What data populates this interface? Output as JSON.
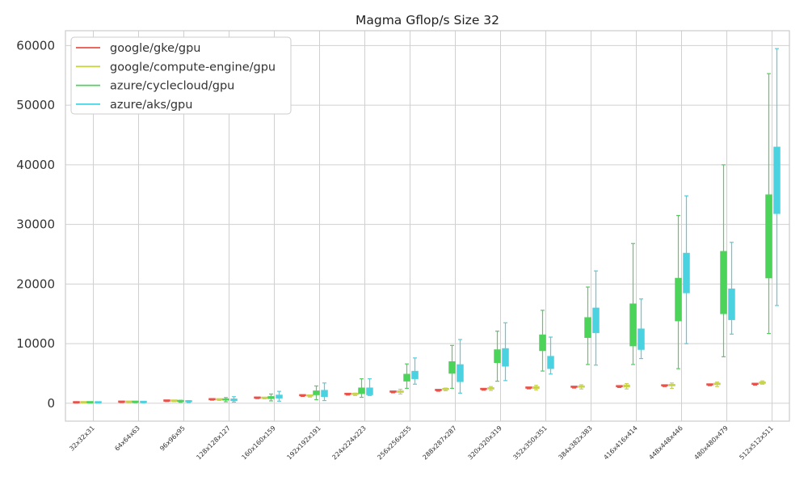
{
  "chart_data": {
    "type": "box",
    "title": "Magma Gflop/s Size 32",
    "xlabel": "",
    "ylabel": "",
    "ylim": [
      -3000,
      62500
    ],
    "yticks": [
      0,
      10000,
      20000,
      30000,
      40000,
      50000,
      60000
    ],
    "ytick_labels": [
      "0",
      "10000",
      "20000",
      "30000",
      "40000",
      "50000",
      "60000"
    ],
    "grid": true,
    "legend_position": "top-left",
    "categories": [
      "32x32x31",
      "64x64x63",
      "96x96x95",
      "128x128x127",
      "160x160x159",
      "192x192x191",
      "224x224x223",
      "256x256x255",
      "288x287x287",
      "320x320x319",
      "352x350x351",
      "384x382x383",
      "416x416x414",
      "448x448x446",
      "480x480x479",
      "512x512x511"
    ],
    "series": [
      {
        "name": "google/gke/gpu",
        "color": "#e8524a",
        "boxes": [
          {
            "whislo": 40,
            "q1": 50,
            "med": 55,
            "q3": 65,
            "whishi": 80
          },
          {
            "whislo": 120,
            "q1": 140,
            "med": 150,
            "q3": 165,
            "whishi": 185
          },
          {
            "whislo": 300,
            "q1": 330,
            "med": 345,
            "q3": 360,
            "whishi": 390
          },
          {
            "whislo": 520,
            "q1": 560,
            "med": 580,
            "q3": 600,
            "whishi": 640
          },
          {
            "whislo": 780,
            "q1": 820,
            "med": 845,
            "q3": 870,
            "whishi": 910
          },
          {
            "whislo": 1150,
            "q1": 1220,
            "med": 1250,
            "q3": 1280,
            "whishi": 1330
          },
          {
            "whislo": 1380,
            "q1": 1450,
            "med": 1480,
            "q3": 1510,
            "whishi": 1560
          },
          {
            "whislo": 1750,
            "q1": 1830,
            "med": 1860,
            "q3": 1890,
            "whishi": 1950
          },
          {
            "whislo": 2020,
            "q1": 2100,
            "med": 2130,
            "q3": 2160,
            "whishi": 2220
          },
          {
            "whislo": 2200,
            "q1": 2280,
            "med": 2310,
            "q3": 2350,
            "whishi": 2420
          },
          {
            "whislo": 2420,
            "q1": 2500,
            "med": 2540,
            "q3": 2580,
            "whishi": 2650
          },
          {
            "whislo": 2550,
            "q1": 2640,
            "med": 2680,
            "q3": 2720,
            "whishi": 2800
          },
          {
            "whislo": 2650,
            "q1": 2740,
            "med": 2780,
            "q3": 2820,
            "whishi": 2900
          },
          {
            "whislo": 2800,
            "q1": 2880,
            "med": 2920,
            "q3": 2960,
            "whishi": 3040
          },
          {
            "whislo": 2950,
            "q1": 3030,
            "med": 3070,
            "q3": 3110,
            "whishi": 3190
          },
          {
            "whislo": 3050,
            "q1": 3130,
            "med": 3170,
            "q3": 3210,
            "whishi": 3290
          }
        ]
      },
      {
        "name": "google/compute-engine/gpu",
        "color": "#c8d24a",
        "boxes": [
          {
            "whislo": 40,
            "q1": 55,
            "med": 60,
            "q3": 70,
            "whishi": 85
          },
          {
            "whislo": 120,
            "q1": 140,
            "med": 150,
            "q3": 170,
            "whishi": 190
          },
          {
            "whislo": 280,
            "q1": 320,
            "med": 340,
            "q3": 360,
            "whishi": 400
          },
          {
            "whislo": 480,
            "q1": 540,
            "med": 570,
            "q3": 610,
            "whishi": 660
          },
          {
            "whislo": 740,
            "q1": 800,
            "med": 840,
            "q3": 880,
            "whishi": 940
          },
          {
            "whislo": 1040,
            "q1": 1160,
            "med": 1200,
            "q3": 1260,
            "whishi": 1350
          },
          {
            "whislo": 1300,
            "q1": 1430,
            "med": 1500,
            "q3": 1580,
            "whishi": 1700
          },
          {
            "whislo": 1550,
            "q1": 1800,
            "med": 1950,
            "q3": 2100,
            "whishi": 2350
          },
          {
            "whislo": 2100,
            "q1": 2250,
            "med": 2350,
            "q3": 2450,
            "whishi": 2550
          },
          {
            "whislo": 2150,
            "q1": 2350,
            "med": 2500,
            "q3": 2650,
            "whishi": 2800
          },
          {
            "whislo": 2250,
            "q1": 2450,
            "med": 2600,
            "q3": 2800,
            "whishi": 3000
          },
          {
            "whislo": 2400,
            "q1": 2650,
            "med": 2800,
            "q3": 2950,
            "whishi": 3100
          },
          {
            "whislo": 2400,
            "q1": 2700,
            "med": 2900,
            "q3": 3100,
            "whishi": 3300
          },
          {
            "whislo": 2500,
            "q1": 2900,
            "med": 3050,
            "q3": 3200,
            "whishi": 3400
          },
          {
            "whislo": 2800,
            "q1": 3100,
            "med": 3250,
            "q3": 3400,
            "whishi": 3550
          },
          {
            "whislo": 3200,
            "q1": 3300,
            "med": 3400,
            "q3": 3600,
            "whishi": 3750
          }
        ]
      },
      {
        "name": "azure/cyclecloud/gpu",
        "color": "#4cd45a",
        "boxes": [
          {
            "whislo": 40,
            "q1": 55,
            "med": 60,
            "q3": 70,
            "whishi": 90
          },
          {
            "whislo": 100,
            "q1": 130,
            "med": 150,
            "q3": 180,
            "whishi": 220
          },
          {
            "whislo": 150,
            "q1": 250,
            "med": 300,
            "q3": 400,
            "whishi": 500
          },
          {
            "whislo": 250,
            "q1": 500,
            "med": 600,
            "q3": 750,
            "whishi": 950
          },
          {
            "whislo": 400,
            "q1": 750,
            "med": 950,
            "q3": 1150,
            "whishi": 1550
          },
          {
            "whislo": 600,
            "q1": 1400,
            "med": 1700,
            "q3": 2100,
            "whishi": 2900
          },
          {
            "whislo": 1000,
            "q1": 1600,
            "med": 2000,
            "q3": 2600,
            "whishi": 4100
          },
          {
            "whislo": 2500,
            "q1": 3700,
            "med": 4200,
            "q3": 4900,
            "whishi": 6600
          },
          {
            "whislo": 2500,
            "q1": 5000,
            "med": 6000,
            "q3": 7000,
            "whishi": 9700
          },
          {
            "whislo": 3700,
            "q1": 6800,
            "med": 7800,
            "q3": 9000,
            "whishi": 12100
          },
          {
            "whislo": 5400,
            "q1": 8800,
            "med": 10000,
            "q3": 11500,
            "whishi": 15600
          },
          {
            "whislo": 6500,
            "q1": 11000,
            "med": 12500,
            "q3": 14400,
            "whishi": 19500
          },
          {
            "whislo": 6500,
            "q1": 9600,
            "med": 13000,
            "q3": 16700,
            "whishi": 26800
          },
          {
            "whislo": 5800,
            "q1": 13800,
            "med": 17000,
            "q3": 21000,
            "whishi": 31500
          },
          {
            "whislo": 7800,
            "q1": 15000,
            "med": 20000,
            "q3": 25500,
            "whishi": 40000
          },
          {
            "whislo": 11700,
            "q1": 21000,
            "med": 28000,
            "q3": 35000,
            "whishi": 55300
          }
        ]
      },
      {
        "name": "azure/aks/gpu",
        "color": "#4ad2e0",
        "boxes": [
          {
            "whislo": 30,
            "q1": 45,
            "med": 55,
            "q3": 65,
            "whishi": 80
          },
          {
            "whislo": 80,
            "q1": 110,
            "med": 130,
            "q3": 150,
            "whishi": 190
          },
          {
            "whislo": 120,
            "q1": 200,
            "med": 260,
            "q3": 330,
            "whishi": 450
          },
          {
            "whislo": 200,
            "q1": 400,
            "med": 550,
            "q3": 750,
            "whishi": 1100
          },
          {
            "whislo": 350,
            "q1": 850,
            "med": 1100,
            "q3": 1400,
            "whishi": 2000
          },
          {
            "whislo": 450,
            "q1": 1100,
            "med": 1600,
            "q3": 2200,
            "whishi": 3400
          },
          {
            "whislo": 1300,
            "q1": 1400,
            "med": 1900,
            "q3": 2600,
            "whishi": 4100
          },
          {
            "whislo": 3200,
            "q1": 4100,
            "med": 4700,
            "q3": 5400,
            "whishi": 7600
          },
          {
            "whislo": 1700,
            "q1": 3600,
            "med": 5000,
            "q3": 6500,
            "whishi": 10700
          },
          {
            "whislo": 3800,
            "q1": 6200,
            "med": 7500,
            "q3": 9200,
            "whishi": 13500
          },
          {
            "whislo": 4900,
            "q1": 5800,
            "med": 6800,
            "q3": 7900,
            "whishi": 11100
          },
          {
            "whislo": 6400,
            "q1": 11800,
            "med": 13500,
            "q3": 16000,
            "whishi": 22200
          },
          {
            "whislo": 7500,
            "q1": 9000,
            "med": 10500,
            "q3": 12500,
            "whishi": 17500
          },
          {
            "whislo": 10000,
            "q1": 18500,
            "med": 21500,
            "q3": 25200,
            "whishi": 34800
          },
          {
            "whislo": 11600,
            "q1": 14000,
            "med": 16500,
            "q3": 19200,
            "whishi": 27000
          },
          {
            "whislo": 16400,
            "q1": 31800,
            "med": 37000,
            "q3": 43000,
            "whishi": 59500
          }
        ]
      }
    ]
  }
}
